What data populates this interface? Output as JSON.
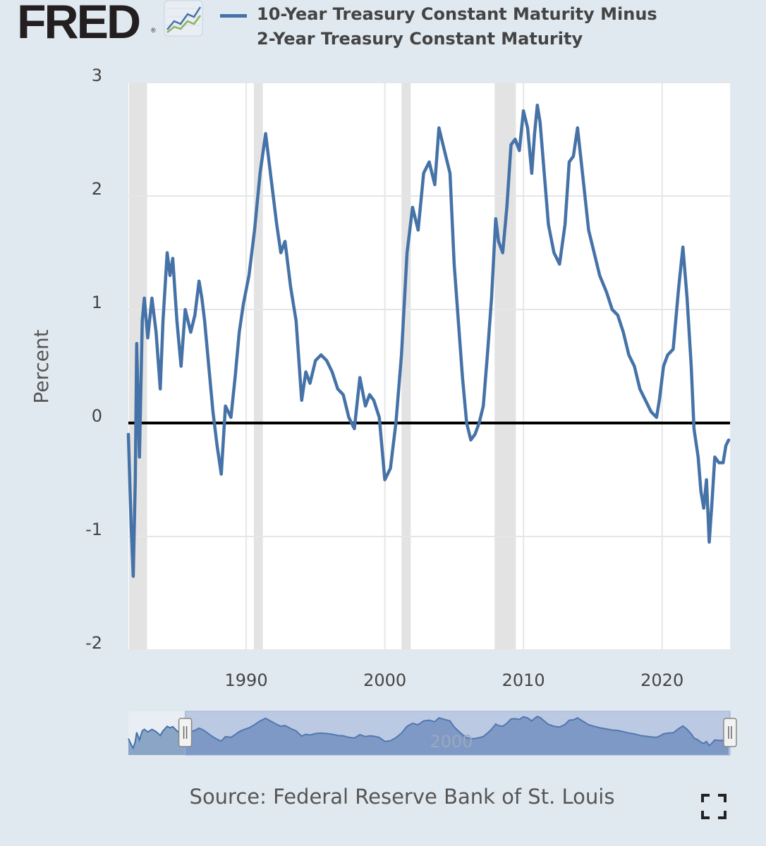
{
  "header": {
    "logo_text": "FRED",
    "logo_mark": "®",
    "legend_label_line1": "10-Year Treasury Constant Maturity Minus",
    "legend_label_line2": "2-Year Treasury Constant Maturity"
  },
  "source_text": "Source: Federal Reserve Bank of St. Louis",
  "colors": {
    "series": "#4572a7",
    "background": "#e1e9f0",
    "plot_background": "#ffffff",
    "recession": "#e3e3e3",
    "zero_line": "#000000"
  },
  "chart_data": {
    "type": "line",
    "title": "10-Year Treasury Constant Maturity Minus 2-Year Treasury Constant Maturity",
    "xlabel": "",
    "ylabel": "Percent",
    "xlim": [
      1981.5,
      2024.9
    ],
    "ylim": [
      -2,
      3
    ],
    "yticks": [
      -2,
      -1,
      0,
      1,
      2,
      3
    ],
    "xticks": [
      1990,
      2000,
      2010,
      2020
    ],
    "grid": true,
    "reference_line": 0,
    "recessions": [
      [
        1981.55,
        1982.85
      ],
      [
        1990.55,
        1991.2
      ],
      [
        2001.2,
        2001.87
      ],
      [
        2007.92,
        2009.45
      ]
    ],
    "navigator": {
      "selected_range": [
        1985.6,
        2024.9
      ],
      "label": "2000"
    },
    "series": [
      {
        "name": "10-Year Treasury Constant Maturity Minus 2-Year Treasury Constant Maturity",
        "x": [
          1981.5,
          1981.7,
          1981.85,
          1982.0,
          1982.1,
          1982.3,
          1982.5,
          1982.65,
          1982.9,
          1983.2,
          1983.5,
          1983.8,
          1984.0,
          1984.3,
          1984.5,
          1984.7,
          1985.0,
          1985.3,
          1985.6,
          1986.0,
          1986.3,
          1986.6,
          1986.8,
          1987.0,
          1987.3,
          1987.6,
          1987.9,
          1988.2,
          1988.5,
          1988.9,
          1989.2,
          1989.5,
          1989.8,
          1990.2,
          1990.6,
          1991.0,
          1991.4,
          1991.8,
          1992.2,
          1992.5,
          1992.8,
          1993.2,
          1993.6,
          1994.0,
          1994.3,
          1994.6,
          1995.0,
          1995.4,
          1995.8,
          1996.2,
          1996.6,
          1997.0,
          1997.4,
          1997.8,
          1998.2,
          1998.6,
          1998.9,
          1999.2,
          1999.6,
          2000.0,
          2000.4,
          2000.8,
          2001.2,
          2001.6,
          2002.0,
          2002.4,
          2002.8,
          2003.2,
          2003.6,
          2003.9,
          2004.3,
          2004.7,
          2005.0,
          2005.3,
          2005.6,
          2005.9,
          2006.2,
          2006.5,
          2006.8,
          2007.1,
          2007.4,
          2007.7,
          2008.0,
          2008.2,
          2008.5,
          2008.8,
          2009.1,
          2009.4,
          2009.7,
          2010.0,
          2010.3,
          2010.6,
          2010.8,
          2011.0,
          2011.2,
          2011.5,
          2011.8,
          2012.2,
          2012.6,
          2013.0,
          2013.3,
          2013.6,
          2013.9,
          2014.3,
          2014.7,
          2015.0,
          2015.5,
          2016.0,
          2016.4,
          2016.8,
          2017.2,
          2017.6,
          2018.0,
          2018.4,
          2018.8,
          2019.2,
          2019.6,
          2019.8,
          2020.1,
          2020.4,
          2020.8,
          2021.2,
          2021.5,
          2021.8,
          2022.1,
          2022.3,
          2022.6,
          2022.8,
          2023.0,
          2023.2,
          2023.4,
          2023.6,
          2023.8,
          2024.1,
          2024.4,
          2024.6,
          2024.8
        ],
        "values": [
          -0.1,
          -0.9,
          -1.35,
          -0.5,
          0.7,
          -0.3,
          0.9,
          1.1,
          0.75,
          1.1,
          0.8,
          0.3,
          0.9,
          1.5,
          1.3,
          1.45,
          0.9,
          0.5,
          1.0,
          0.8,
          0.95,
          1.25,
          1.1,
          0.9,
          0.5,
          0.1,
          -0.2,
          -0.45,
          0.15,
          0.05,
          0.4,
          0.8,
          1.05,
          1.3,
          1.7,
          2.2,
          2.55,
          2.15,
          1.75,
          1.5,
          1.6,
          1.2,
          0.9,
          0.2,
          0.45,
          0.35,
          0.55,
          0.6,
          0.55,
          0.45,
          0.3,
          0.25,
          0.05,
          -0.05,
          0.4,
          0.15,
          0.25,
          0.2,
          0.05,
          -0.5,
          -0.4,
          0.0,
          0.6,
          1.5,
          1.9,
          1.7,
          2.2,
          2.3,
          2.1,
          2.6,
          2.4,
          2.2,
          1.4,
          0.9,
          0.4,
          0.0,
          -0.15,
          -0.1,
          0.0,
          0.15,
          0.6,
          1.1,
          1.8,
          1.6,
          1.5,
          1.9,
          2.45,
          2.5,
          2.4,
          2.75,
          2.6,
          2.2,
          2.55,
          2.8,
          2.65,
          2.2,
          1.75,
          1.5,
          1.4,
          1.75,
          2.3,
          2.35,
          2.6,
          2.15,
          1.7,
          1.55,
          1.3,
          1.15,
          1.0,
          0.95,
          0.8,
          0.6,
          0.5,
          0.3,
          0.2,
          0.1,
          0.05,
          0.2,
          0.5,
          0.6,
          0.65,
          1.2,
          1.55,
          1.1,
          0.5,
          -0.05,
          -0.3,
          -0.6,
          -0.75,
          -0.5,
          -1.05,
          -0.7,
          -0.3,
          -0.35,
          -0.35,
          -0.2,
          -0.15
        ]
      }
    ]
  }
}
